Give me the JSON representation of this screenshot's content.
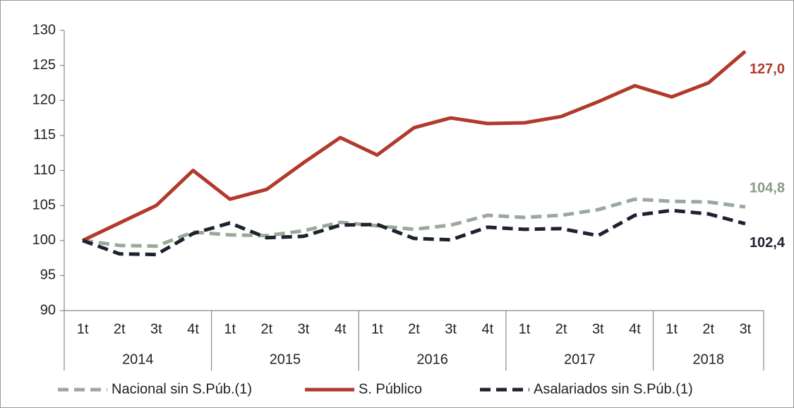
{
  "chart_data": {
    "type": "line",
    "categories": [
      "1t",
      "2t",
      "3t",
      "4t",
      "1t",
      "2t",
      "3t",
      "4t",
      "1t",
      "2t",
      "3t",
      "4t",
      "1t",
      "2t",
      "3t",
      "4t",
      "1t",
      "2t",
      "3t"
    ],
    "category_groups": [
      {
        "label": "2014",
        "span": 4
      },
      {
        "label": "2015",
        "span": 4
      },
      {
        "label": "2016",
        "span": 4
      },
      {
        "label": "2017",
        "span": 4
      },
      {
        "label": "2018",
        "span": 3
      }
    ],
    "series": [
      {
        "name": "Nacional sin S.Púb.(1)",
        "color": "#9aa99a",
        "dashed": true,
        "values": [
          100,
          99.3,
          99.2,
          101.2,
          100.8,
          100.7,
          101.4,
          102.6,
          102.1,
          101.6,
          102.2,
          103.6,
          103.3,
          103.6,
          104.4,
          105.9,
          105.6,
          105.5,
          104.8
        ],
        "value_labels": [
          null,
          null,
          null,
          null,
          null,
          null,
          null,
          null,
          null,
          null,
          null,
          null,
          null,
          null,
          null,
          null,
          null,
          null,
          "104,8"
        ]
      },
      {
        "name": "S. Público",
        "color": "#b23a2c",
        "dashed": false,
        "values": [
          100,
          102.5,
          105,
          110,
          105.9,
          107.3,
          111.1,
          114.7,
          112.2,
          116.1,
          117.5,
          116.7,
          116.8,
          117.7,
          119.8,
          122.1,
          120.5,
          122.5,
          127.0
        ],
        "value_labels": [
          null,
          null,
          null,
          null,
          null,
          null,
          null,
          null,
          null,
          null,
          null,
          null,
          null,
          null,
          null,
          null,
          null,
          null,
          "127,0"
        ]
      },
      {
        "name": "Asalariados sin S.Púb.(1)",
        "color": "#1f2130",
        "dashed": true,
        "values": [
          100,
          98.1,
          98.0,
          101.0,
          102.5,
          100.4,
          100.6,
          102.2,
          102.3,
          100.3,
          100.1,
          101.9,
          101.6,
          101.7,
          100.7,
          103.6,
          104.3,
          103.8,
          102.4
        ],
        "value_labels": [
          null,
          null,
          null,
          null,
          null,
          null,
          null,
          null,
          null,
          null,
          null,
          null,
          null,
          null,
          null,
          null,
          null,
          null,
          "102,4"
        ]
      }
    ],
    "ylim": [
      90,
      130
    ],
    "yticks": [
      90,
      95,
      100,
      105,
      110,
      115,
      120,
      125,
      130
    ],
    "grid": false
  }
}
